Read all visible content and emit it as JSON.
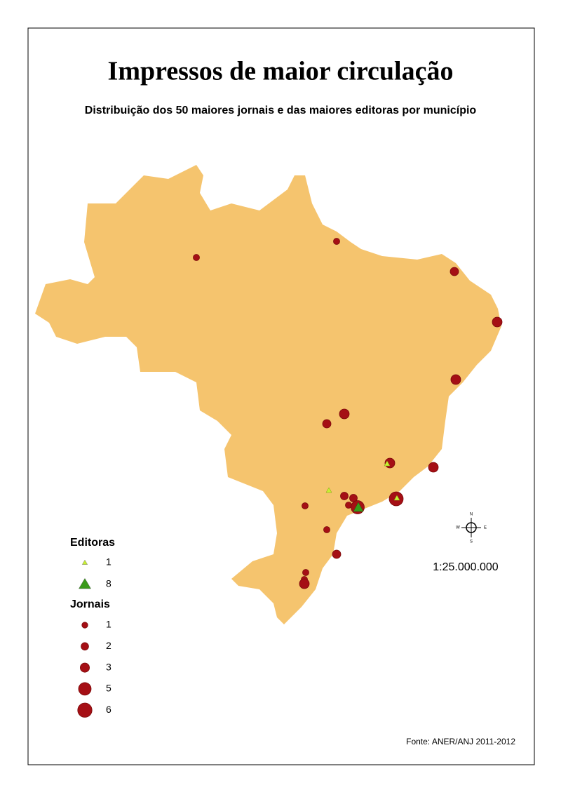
{
  "title": "Impressos de maior circulação",
  "subtitle": "Distribuição dos 50 maiores jornais e das maiores editoras por município",
  "legend": {
    "editoras": {
      "title": "Editoras",
      "values": [
        1,
        8
      ]
    },
    "jornais": {
      "title": "Jornais",
      "values": [
        1,
        2,
        3,
        5,
        6
      ]
    }
  },
  "scale": "1:25.000.000",
  "compass": {
    "n": "N",
    "s": "S",
    "e": "E",
    "w": "W"
  },
  "source": "Fonte: ANER/ANJ 2011-2012"
}
